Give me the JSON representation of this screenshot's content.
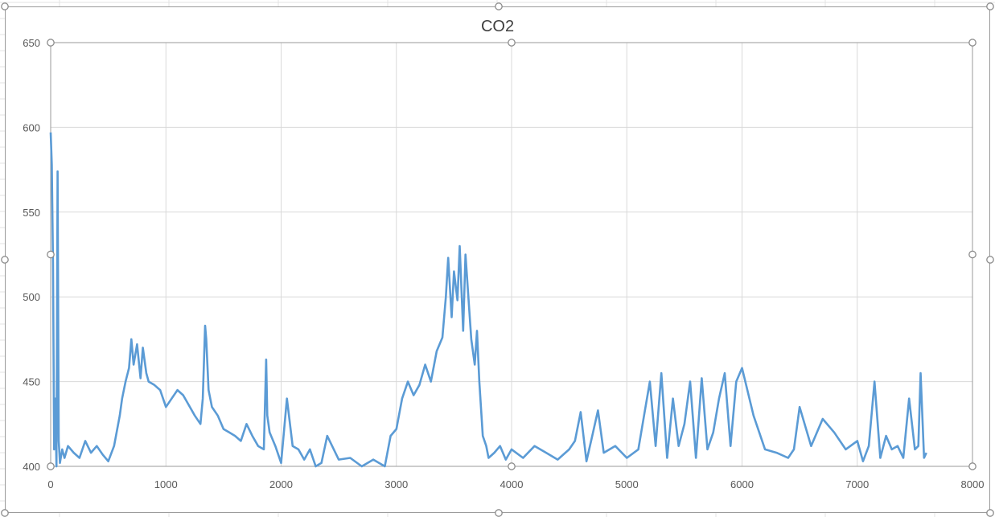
{
  "colors": {
    "series": "#5b9bd5",
    "gridline": "#d9d9d9",
    "axis_text": "#595959",
    "title_text": "#404040",
    "plot_border": "#9a9a9a"
  },
  "chart_data": {
    "type": "line",
    "title": "CO2",
    "xlabel": "",
    "ylabel": "",
    "xlim": [
      0,
      8000
    ],
    "ylim": [
      400,
      650
    ],
    "x_ticks": [
      0,
      1000,
      2000,
      3000,
      4000,
      5000,
      6000,
      7000,
      8000
    ],
    "y_ticks": [
      400,
      450,
      500,
      550,
      600,
      650
    ],
    "x_tick_labels": [
      "0",
      "1000",
      "2000",
      "3000",
      "4000",
      "5000",
      "6000",
      "7000",
      "8000"
    ],
    "y_tick_labels": [
      "400",
      "450",
      "500",
      "550",
      "600",
      "650"
    ],
    "grid": true,
    "legend": "none",
    "series": [
      {
        "color": "#5b9bd5",
        "x": [
          0,
          10,
          20,
          30,
          40,
          50,
          60,
          70,
          80,
          100,
          120,
          150,
          200,
          250,
          300,
          350,
          400,
          450,
          500,
          550,
          600,
          620,
          650,
          680,
          700,
          720,
          750,
          780,
          800,
          830,
          850,
          900,
          950,
          1000,
          1050,
          1100,
          1150,
          1200,
          1250,
          1300,
          1320,
          1340,
          1350,
          1370,
          1400,
          1450,
          1500,
          1550,
          1600,
          1650,
          1700,
          1750,
          1800,
          1850,
          1870,
          1880,
          1900,
          1950,
          2000,
          2050,
          2100,
          2150,
          2200,
          2250,
          2300,
          2350,
          2400,
          2500,
          2600,
          2700,
          2800,
          2900,
          2950,
          3000,
          3050,
          3100,
          3150,
          3200,
          3250,
          3300,
          3350,
          3400,
          3430,
          3450,
          3480,
          3500,
          3530,
          3550,
          3580,
          3600,
          3630,
          3650,
          3680,
          3700,
          3720,
          3750,
          3780,
          3800,
          3850,
          3900,
          3950,
          4000,
          4100,
          4200,
          4300,
          4400,
          4500,
          4550,
          4600,
          4650,
          4700,
          4750,
          4800,
          4900,
          5000,
          5100,
          5150,
          5200,
          5250,
          5300,
          5350,
          5400,
          5450,
          5500,
          5550,
          5600,
          5650,
          5700,
          5750,
          5800,
          5850,
          5900,
          5950,
          6000,
          6100,
          6200,
          6300,
          6400,
          6450,
          6500,
          6600,
          6700,
          6800,
          6900,
          7000,
          7050,
          7100,
          7150,
          7200,
          7250,
          7300,
          7350,
          7400,
          7450,
          7500,
          7530,
          7550,
          7580,
          7600
        ],
        "y": [
          597,
          578,
          520,
          410,
          440,
          400,
          574,
          415,
          402,
          410,
          405,
          412,
          408,
          405,
          415,
          408,
          412,
          407,
          403,
          412,
          430,
          440,
          450,
          458,
          475,
          460,
          472,
          452,
          470,
          455,
          450,
          448,
          445,
          435,
          440,
          445,
          442,
          436,
          430,
          425,
          440,
          483,
          475,
          445,
          435,
          430,
          422,
          420,
          418,
          415,
          425,
          418,
          412,
          410,
          463,
          430,
          420,
          412,
          402,
          440,
          412,
          410,
          404,
          410,
          400,
          402,
          418,
          404,
          405,
          400,
          404,
          400,
          418,
          422,
          440,
          450,
          442,
          448,
          460,
          450,
          468,
          476,
          500,
          523,
          488,
          515,
          498,
          530,
          480,
          525,
          495,
          475,
          460,
          480,
          450,
          418,
          412,
          405,
          408,
          412,
          404,
          410,
          405,
          412,
          408,
          404,
          410,
          415,
          432,
          403,
          418,
          433,
          408,
          412,
          405,
          410,
          430,
          450,
          412,
          455,
          405,
          440,
          412,
          425,
          450,
          405,
          452,
          410,
          420,
          440,
          455,
          412,
          450,
          458,
          430,
          410,
          408,
          405,
          410,
          435,
          412,
          428,
          420,
          410,
          415,
          403,
          412,
          450,
          405,
          418,
          410,
          412,
          405,
          440,
          410,
          412,
          455,
          405,
          408
        ]
      }
    ]
  }
}
